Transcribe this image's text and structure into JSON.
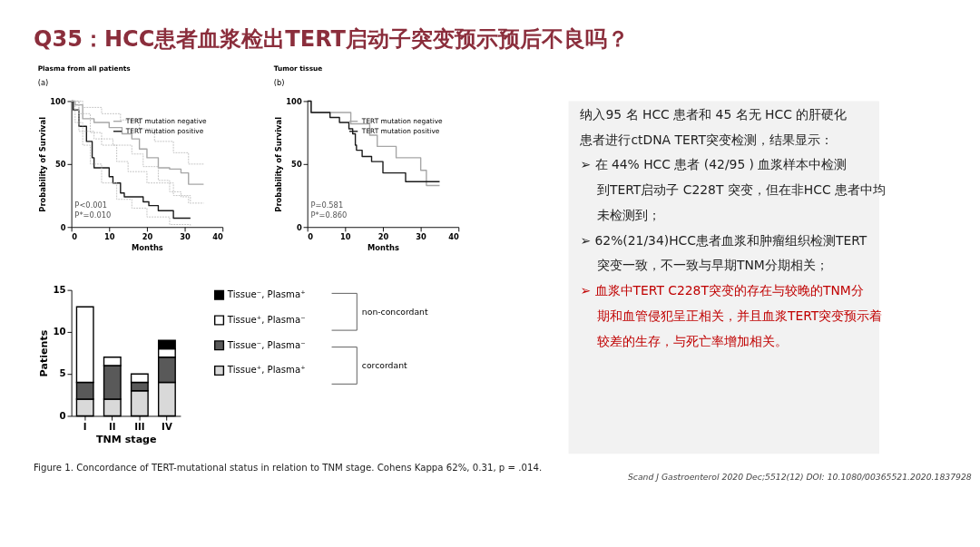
{
  "chart_data": [
    {
      "type": "step",
      "title": "Plasma from all patients",
      "xlabel": "Months",
      "ylabel": "Probability of Survival",
      "xlim": [
        0,
        40
      ],
      "xticks": [
        0,
        10,
        20,
        30,
        40
      ],
      "ylim": [
        0,
        100
      ],
      "yticks": [
        0,
        50,
        100
      ],
      "grid": false,
      "legend": "top right",
      "annotations": [
        "(a)",
        "P<0.001",
        "P*=0.010"
      ],
      "series": [
        {
          "name": "TERT mutation negative",
          "color": "#a6a6a6",
          "line_style": "solid",
          "x": [
            0,
            1,
            3,
            6,
            10,
            13.4,
            16,
            18,
            20,
            23,
            26,
            29,
            31,
            35
          ],
          "values": [
            100,
            97,
            86,
            83,
            79,
            74,
            70,
            62,
            55,
            47,
            46,
            43,
            34,
            34
          ]
        },
        {
          "name": "TERT mutation positive",
          "color": "#1a1a1a",
          "line_style": "solid",
          "x": [
            0,
            0.5,
            2,
            4,
            5.5,
            6,
            10,
            11,
            13,
            14,
            19,
            20.5,
            23,
            27,
            31.5
          ],
          "values": [
            100,
            93,
            80,
            68,
            55,
            47,
            40,
            35,
            27,
            24,
            20,
            17,
            13,
            7,
            7
          ]
        },
        {
          "color": "#bfbfbf",
          "line_style": "dotted",
          "x": [
            0,
            3,
            8,
            13,
            18,
            22,
            27,
            31,
            35
          ],
          "values": [
            100,
            95,
            90,
            85,
            78,
            68,
            59,
            50,
            50
          ]
        },
        {
          "color": "#bfbfbf",
          "line_style": "dotted",
          "x": [
            0,
            2,
            6,
            11,
            16,
            19,
            23,
            26,
            29,
            31,
            35
          ],
          "values": [
            100,
            76,
            70,
            65,
            58,
            48,
            37,
            28,
            24,
            19,
            19
          ]
        },
        {
          "color": "#bfbfbf",
          "line_style": "dotted",
          "x": [
            0,
            2,
            5,
            8,
            12,
            15,
            20,
            27,
            31.5
          ],
          "values": [
            100,
            90,
            75,
            65,
            52,
            44,
            35,
            25,
            20
          ]
        },
        {
          "color": "#bfbfbf",
          "line_style": "dotted",
          "x": [
            0,
            1,
            3,
            5,
            8,
            12,
            16,
            20,
            26,
            31.5
          ],
          "values": [
            100,
            83,
            65,
            50,
            35,
            22,
            15,
            8,
            2,
            1
          ]
        }
      ]
    },
    {
      "type": "step",
      "title": "Tumor tissue",
      "xlabel": "Months",
      "ylabel": "Probability of Survival",
      "xlim": [
        0,
        40
      ],
      "xticks": [
        0,
        10,
        20,
        30,
        40
      ],
      "ylim": [
        0,
        100
      ],
      "yticks": [
        0,
        50,
        100
      ],
      "grid": false,
      "legend": "top right",
      "annotations": [
        "(b)",
        "P=0.581",
        "P*=0.860"
      ],
      "series": [
        {
          "name": "TERT mutation negative",
          "color": "#a6a6a6",
          "line_style": "solid",
          "x": [
            0,
            1,
            11.5,
            16.5,
            18.5,
            23.5,
            30,
            31.5,
            35
          ],
          "values": [
            100,
            91,
            82,
            73,
            64,
            55,
            45,
            33,
            33
          ]
        },
        {
          "name": "TERT mutation positive",
          "color": "#1a1a1a",
          "line_style": "solid",
          "x": [
            0,
            1,
            6,
            8.5,
            11,
            12,
            12.7,
            13,
            14.5,
            17,
            20,
            26,
            35
          ],
          "values": [
            100,
            91,
            87,
            83,
            78,
            74,
            65,
            61,
            56,
            52,
            43,
            36,
            36
          ]
        }
      ]
    },
    {
      "type": "bar",
      "stacked": true,
      "xlabel": "TNM stage",
      "ylabel": "Patients",
      "categories": [
        "I",
        "II",
        "III",
        "IV"
      ],
      "ylim": [
        0,
        15
      ],
      "yticks": [
        0,
        5,
        10,
        15
      ],
      "grid": false,
      "legend": "right",
      "annotations": [
        "non-concordant",
        "corcordant",
        "Figure 1. Concordance of TERT-mutational status in relation to TNM stage. Cohens Kappa 62%, 0.31, p = .014."
      ],
      "series": [
        {
          "name": "Tissue⁺, Plasma⁺",
          "color": "#d9d9d9",
          "values": [
            2,
            2,
            3,
            4
          ]
        },
        {
          "name": "Tissue⁻, Plasma⁻",
          "color": "#595959",
          "values": [
            2,
            4,
            1,
            3
          ]
        },
        {
          "name": "Tissue⁺, Plasma⁻",
          "color": "#ffffff",
          "values": [
            9,
            1,
            1,
            1
          ]
        },
        {
          "name": "Tissue⁻, Plasma⁺",
          "color": "#000000",
          "values": [
            0,
            0,
            0,
            1
          ]
        }
      ]
    },
    {
      "type": "other",
      "title": "Q35：HCC患者血浆检出TERT启动子突变预示预后不良吗？",
      "annotations": [
        "纳入95 名 HCC 患者和 45 名无 HCC 的肝硬化患者进行ctDNA TERT突变检测，结果显示：",
        "➢ 在 44% HCC 患者 (42/95 ) 血浆样本中检测到TERT启动子 C228T 突变，但在非HCC 患者中均未检测到；",
        "➢ 62%(21/34)HCC患者血浆和肿瘤组织检测TERT突变一致，不一致与早期TNM分期相关；",
        "➢ 血浆中TERT C228T突变的存在与较晚的TNM分期和血管侵犯呈正相关，并且血浆TERT突变预示着较差的生存，与死亡率增加相关。",
        "Scand J Gastroenterol 2020 Dec;5512(12) DOI:  10.1080/00365521.2020.1837928"
      ]
    }
  ]
}
